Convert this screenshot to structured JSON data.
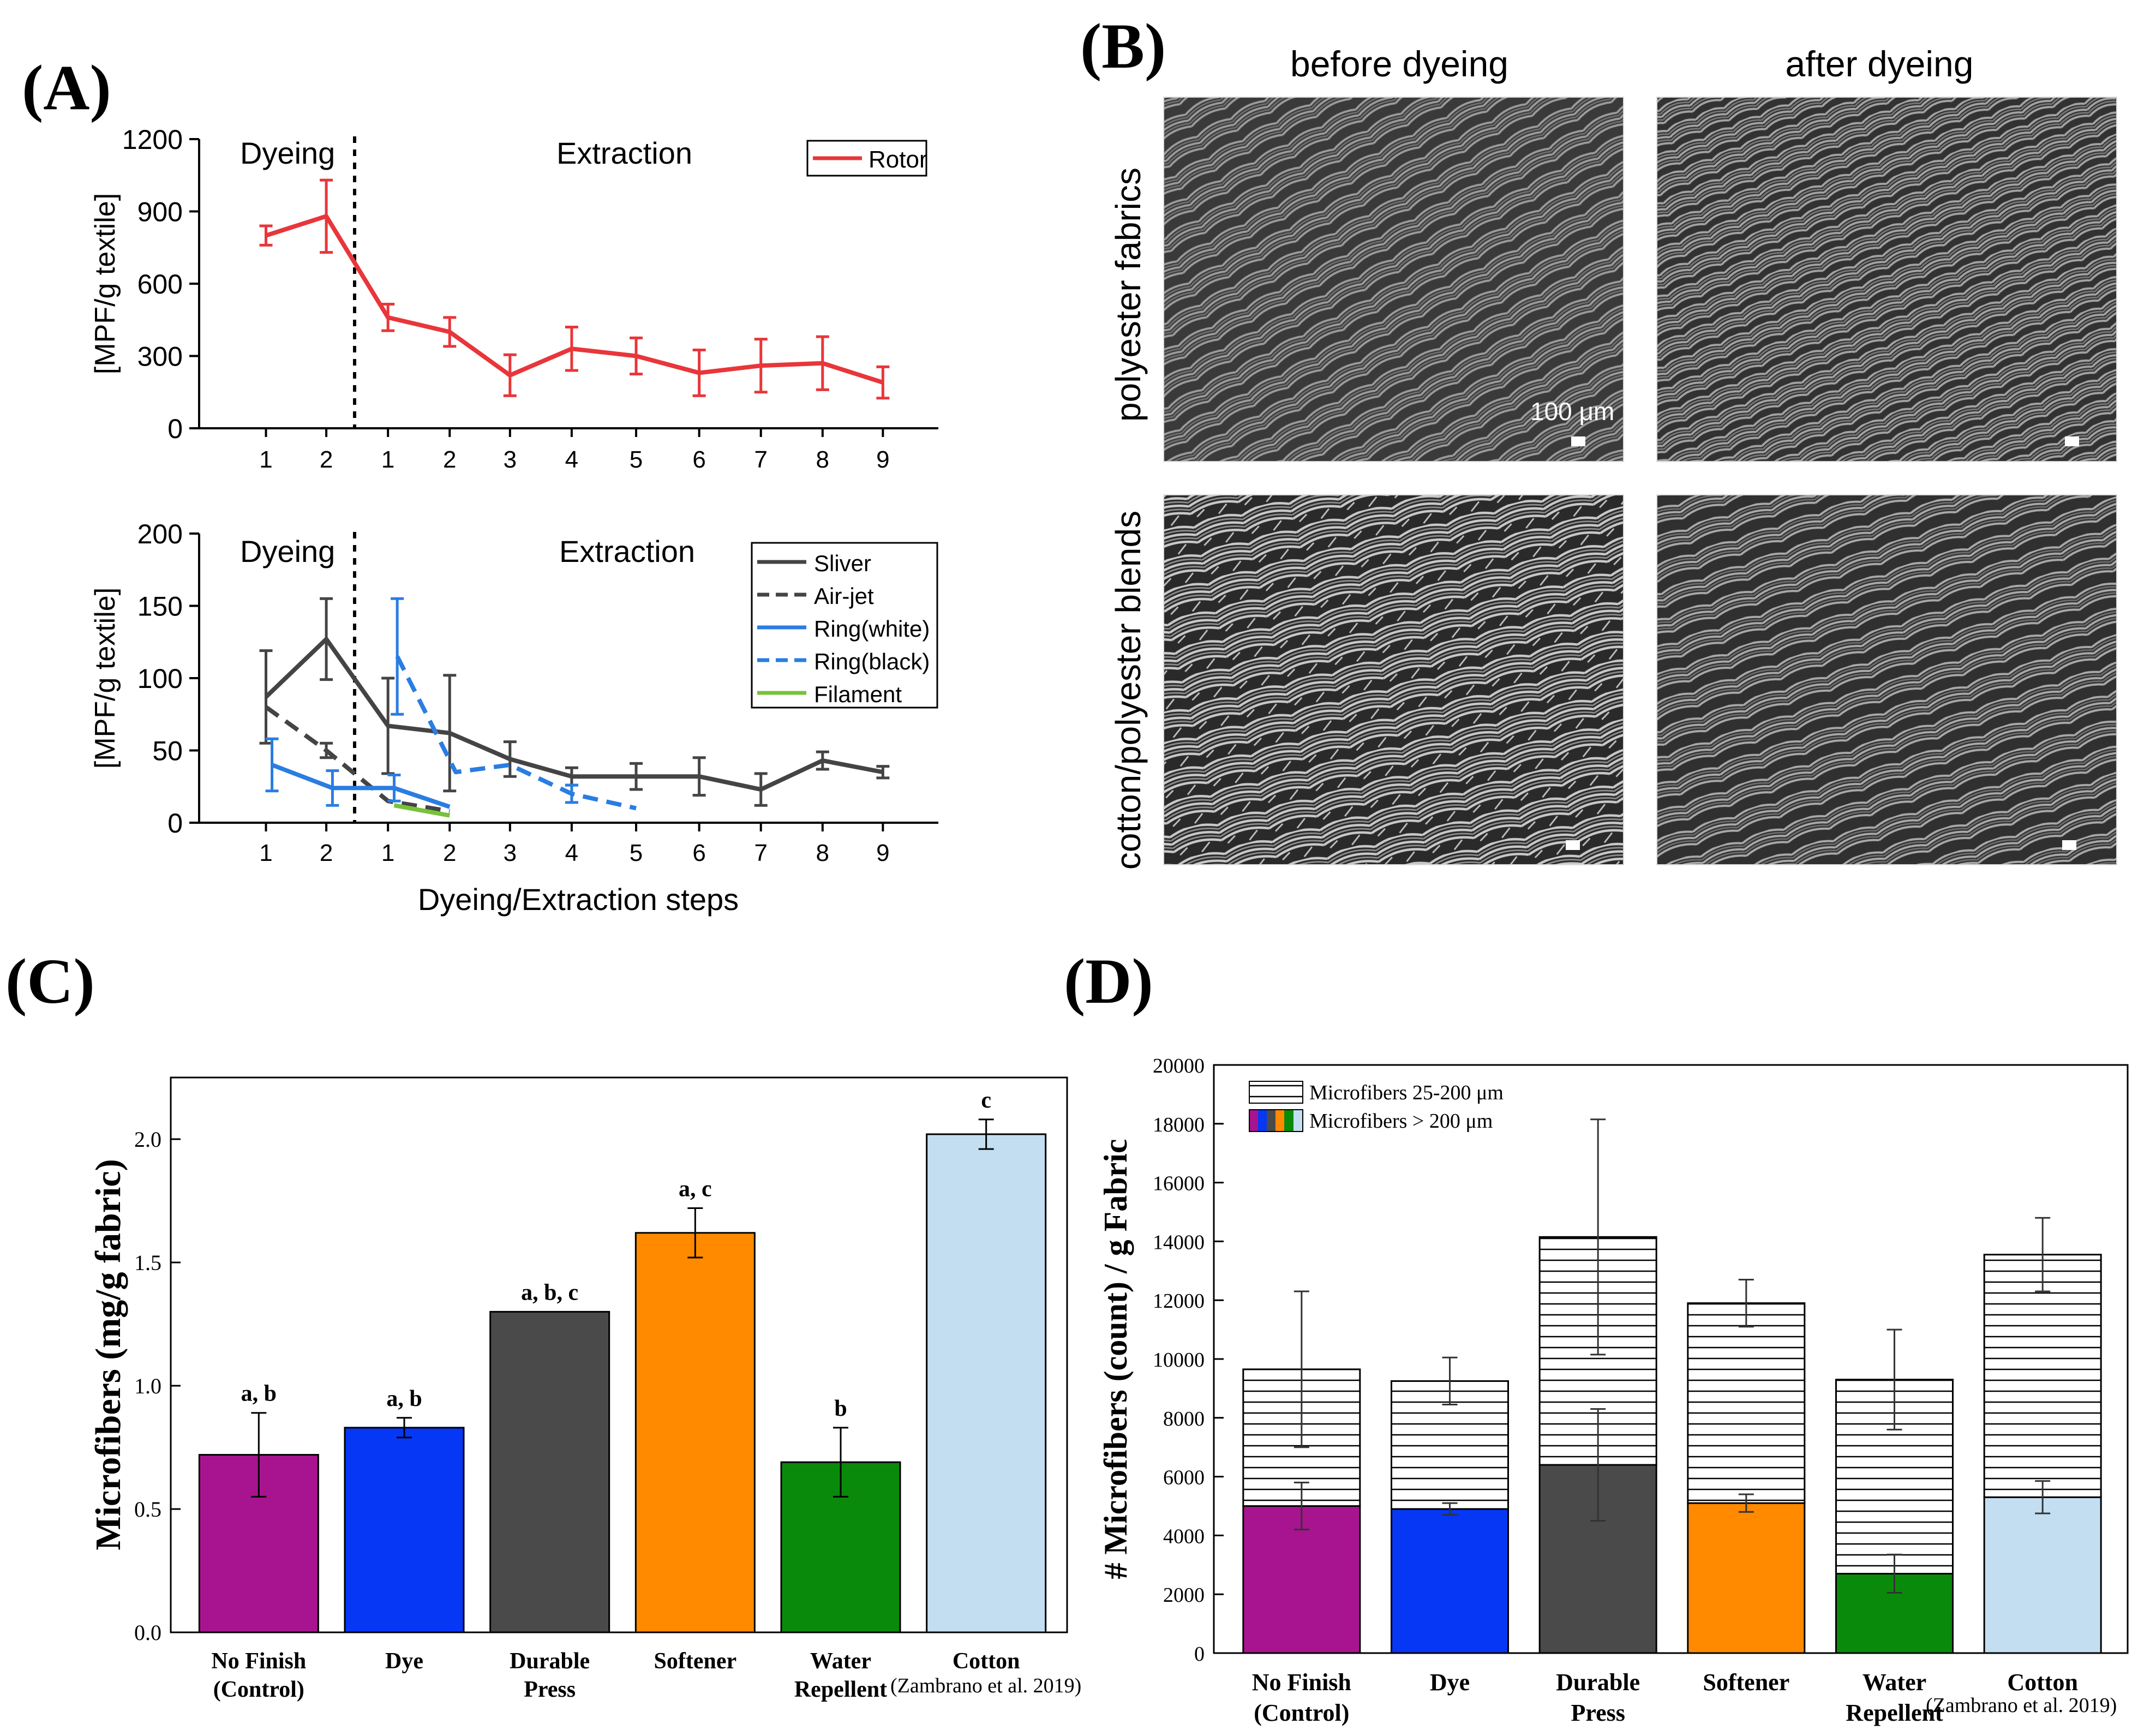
{
  "panels": {
    "a": "(A)",
    "b": "(B)",
    "c": "(C)",
    "d": "(D)"
  },
  "colors": {
    "rotor": "#e8363a",
    "sliver": "#444444",
    "airjet": "#444444",
    "ring_white": "#2a7de1",
    "ring_black": "#2a7de1",
    "filament": "#77c23a",
    "no_finish": "#a8148f",
    "dye": "#0637f5",
    "durable_press": "#4a4a4a",
    "softener": "#ff8a00",
    "water_repellent": "#0a8a0a",
    "cotton": "#c3def0"
  },
  "chart_data": [
    {
      "id": "A-top",
      "type": "line",
      "ylabel": "[MPF/g textile]",
      "ylim": [
        0,
        1200
      ],
      "yticks": [
        0,
        300,
        600,
        900,
        1200
      ],
      "steps": [
        "1",
        "2",
        "1",
        "2",
        "3",
        "4",
        "5",
        "6",
        "7",
        "8",
        "9"
      ],
      "phase_labels": [
        "Dyeing",
        "Extraction"
      ],
      "legend_position": "top-right",
      "series": [
        {
          "name": "Rotor",
          "style": "solid",
          "values": [
            800,
            880,
            460,
            400,
            220,
            330,
            300,
            230,
            260,
            270,
            190
          ],
          "errors": [
            40,
            150,
            55,
            60,
            85,
            90,
            75,
            95,
            110,
            110,
            65
          ]
        }
      ]
    },
    {
      "id": "A-bottom",
      "type": "line",
      "ylabel": "[MPF/g textile]",
      "xlabel": "Dyeing/Extraction steps",
      "ylim": [
        0,
        200
      ],
      "yticks": [
        0,
        50,
        100,
        150,
        200
      ],
      "steps": [
        "1",
        "2",
        "1",
        "2",
        "3",
        "4",
        "5",
        "6",
        "7",
        "8",
        "9"
      ],
      "phase_labels": [
        "Dyeing",
        "Extraction"
      ],
      "legend_position": "top-right",
      "series": [
        {
          "name": "Sliver",
          "style": "solid",
          "x": [
            1,
            2,
            3,
            4,
            5,
            6,
            7,
            8,
            9,
            10,
            11
          ],
          "values": [
            87,
            127,
            67,
            62,
            44,
            32,
            32,
            32,
            23,
            43,
            35
          ],
          "errors": [
            32,
            28,
            33,
            40,
            12,
            6,
            9,
            13,
            11,
            6,
            4
          ]
        },
        {
          "name": "Air-jet",
          "style": "dashed",
          "x": [
            1,
            2,
            3,
            4
          ],
          "values": [
            80,
            50,
            15,
            8
          ],
          "errors": [
            0,
            5,
            0,
            0
          ]
        },
        {
          "name": "Ring(white)",
          "style": "solid",
          "x": [
            1.1,
            2.1,
            3.1,
            4.0
          ],
          "values": [
            40,
            24,
            24,
            11
          ],
          "errors": [
            18,
            12,
            9,
            0
          ]
        },
        {
          "name": "Ring(black)",
          "style": "dashed",
          "x": [
            3.15,
            4.1,
            5,
            6,
            7
          ],
          "values": [
            115,
            35,
            40,
            20,
            10
          ],
          "errors": [
            40,
            0,
            0,
            6,
            0
          ]
        },
        {
          "name": "Filament",
          "style": "solid",
          "x": [
            3.1,
            4.0
          ],
          "values": [
            12,
            5
          ],
          "errors": [
            0,
            0
          ]
        }
      ]
    },
    {
      "id": "B",
      "type": "image-grid",
      "column_labels": [
        "before dyeing",
        "after dyeing"
      ],
      "row_labels": [
        "polyester fabrics",
        "cotton/polyester blends"
      ],
      "scale_bar": "100 μm"
    },
    {
      "id": "C",
      "type": "bar",
      "ylabel": "Microfibers (mg/g fabric)",
      "ylim": [
        0,
        2.25
      ],
      "yticks": [
        "0.0",
        "0.5",
        "1.0",
        "1.5",
        "2.0"
      ],
      "categories": [
        [
          "No Finish",
          "(Control)"
        ],
        [
          "Dye"
        ],
        [
          "Durable",
          "Press"
        ],
        [
          "Softener"
        ],
        [
          "Water",
          "Repellent"
        ],
        [
          "Cotton"
        ]
      ],
      "values": [
        0.72,
        0.83,
        1.3,
        1.62,
        0.69,
        2.02
      ],
      "errors": [
        0.17,
        0.04,
        0,
        0.1,
        0.14,
        0.06
      ],
      "letters": [
        "a, b",
        "a, b",
        "a, b, c",
        "a, c",
        "b",
        "c"
      ],
      "note": "(Zambrano et al. 2019)"
    },
    {
      "id": "D",
      "type": "bar",
      "stacked": true,
      "ylabel": "# Microfibers (count) / g Fabric",
      "ylim": [
        0,
        20000
      ],
      "yticks": [
        0,
        2000,
        4000,
        6000,
        8000,
        10000,
        12000,
        14000,
        16000,
        18000,
        20000
      ],
      "categories": [
        [
          "No Finish",
          "(Control)"
        ],
        [
          "Dye"
        ],
        [
          "Durable",
          "Press"
        ],
        [
          "Softener"
        ],
        [
          "Water",
          "Repellent"
        ],
        [
          "Cotton"
        ]
      ],
      "legend_position": "top-left",
      "series": [
        {
          "name": "Microfibers > 200 μm",
          "values": [
            5000,
            4900,
            6400,
            5100,
            2700,
            5300
          ],
          "errors": [
            800,
            200,
            1900,
            300,
            650,
            550
          ]
        },
        {
          "name": "Microfibers 25-200 μm",
          "values": [
            4650,
            4350,
            7750,
            6800,
            6600,
            8250
          ],
          "errors": [
            2650,
            800,
            4000,
            800,
            1700,
            1250
          ]
        }
      ],
      "note": "(Zambrano et al. 2019)"
    }
  ]
}
